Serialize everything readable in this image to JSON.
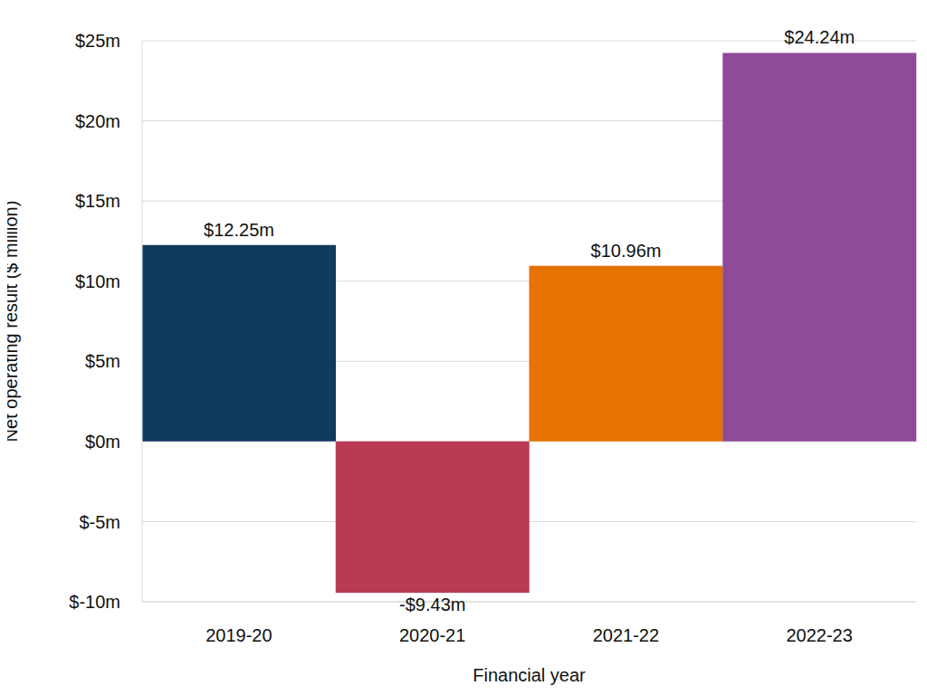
{
  "chart_data": {
    "type": "bar",
    "categories": [
      "2019-20",
      "2020-21",
      "2021-22",
      "2022-23"
    ],
    "values": [
      12.25,
      -9.43,
      10.96,
      24.24
    ],
    "value_labels": [
      "$12.25m",
      "-$9.43m",
      "$10.96m",
      "$24.24m"
    ],
    "colors": [
      "#0f3b5f",
      "#b93a54",
      "#e67200",
      "#8e4b97"
    ],
    "x_label": "Financial year",
    "y_label": "Net operating result ($ million)",
    "ylim": [
      -10,
      25
    ],
    "yticks": [
      {
        "value": -10,
        "label": "$-10m"
      },
      {
        "value": -5,
        "label": "$-5m"
      },
      {
        "value": 0,
        "label": "$0m"
      },
      {
        "value": 5,
        "label": "$5m"
      },
      {
        "value": 10,
        "label": "$10m"
      },
      {
        "value": 15,
        "label": "$15m"
      },
      {
        "value": 20,
        "label": "$20m"
      },
      {
        "value": 25,
        "label": "$25m"
      }
    ],
    "grid": true,
    "data_labels": true
  }
}
